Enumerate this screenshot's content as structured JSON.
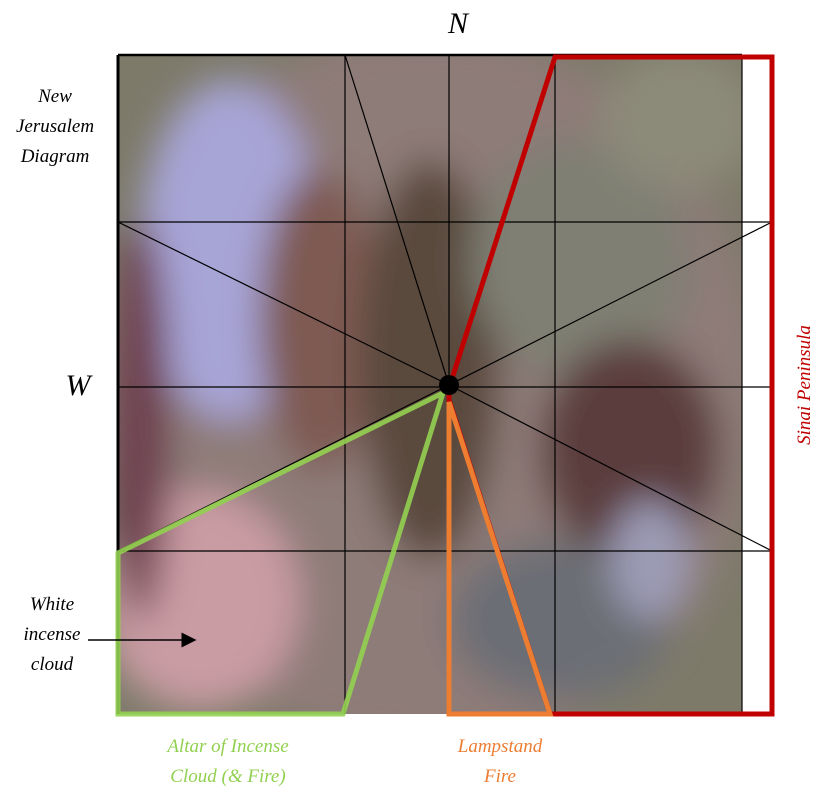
{
  "compass": {
    "north": "N",
    "west": "W"
  },
  "title": {
    "lines": [
      "New",
      "Jerusalem",
      "Diagram"
    ]
  },
  "annotations": {
    "white_cloud": {
      "lines": [
        "White",
        "incense",
        "cloud"
      ]
    },
    "altar": {
      "lines": [
        "Altar of Incense",
        "Cloud (& Fire)"
      ]
    },
    "lampstand": {
      "lines": [
        "Lampstand",
        "Fire"
      ]
    },
    "sinai": "Sinai Peninsula"
  }
}
